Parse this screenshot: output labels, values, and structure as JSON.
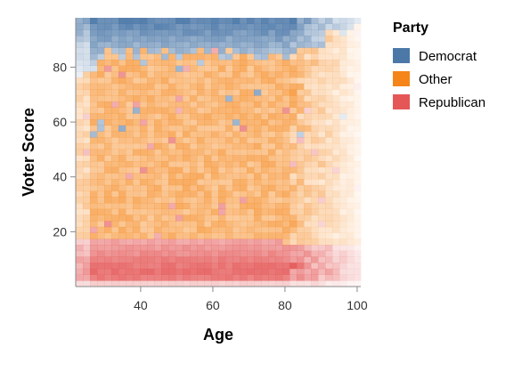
{
  "chart_data": {
    "type": "heatmap",
    "xlabel": "Age",
    "ylabel": "Voter Score",
    "xlim": [
      22,
      101
    ],
    "ylim": [
      0,
      98
    ],
    "x_ticks": [
      40,
      60,
      80,
      100
    ],
    "y_ticks": [
      20,
      40,
      60,
      80
    ],
    "grid": false,
    "legend_placement": "right",
    "legend": {
      "title": "Party",
      "entries": [
        {
          "name": "Democrat",
          "color": "#4c78a8"
        },
        {
          "name": "Other",
          "color": "#f58518"
        },
        {
          "name": "Republican",
          "color": "#e45756"
        }
      ]
    },
    "regions": [
      {
        "party": "Republican",
        "y_range": [
          0,
          18
        ],
        "note_peak_y": 6
      },
      {
        "party": "Other",
        "y_range": [
          18,
          84
        ]
      },
      {
        "party": "Democrat",
        "y_range": [
          84,
          98
        ]
      }
    ]
  }
}
